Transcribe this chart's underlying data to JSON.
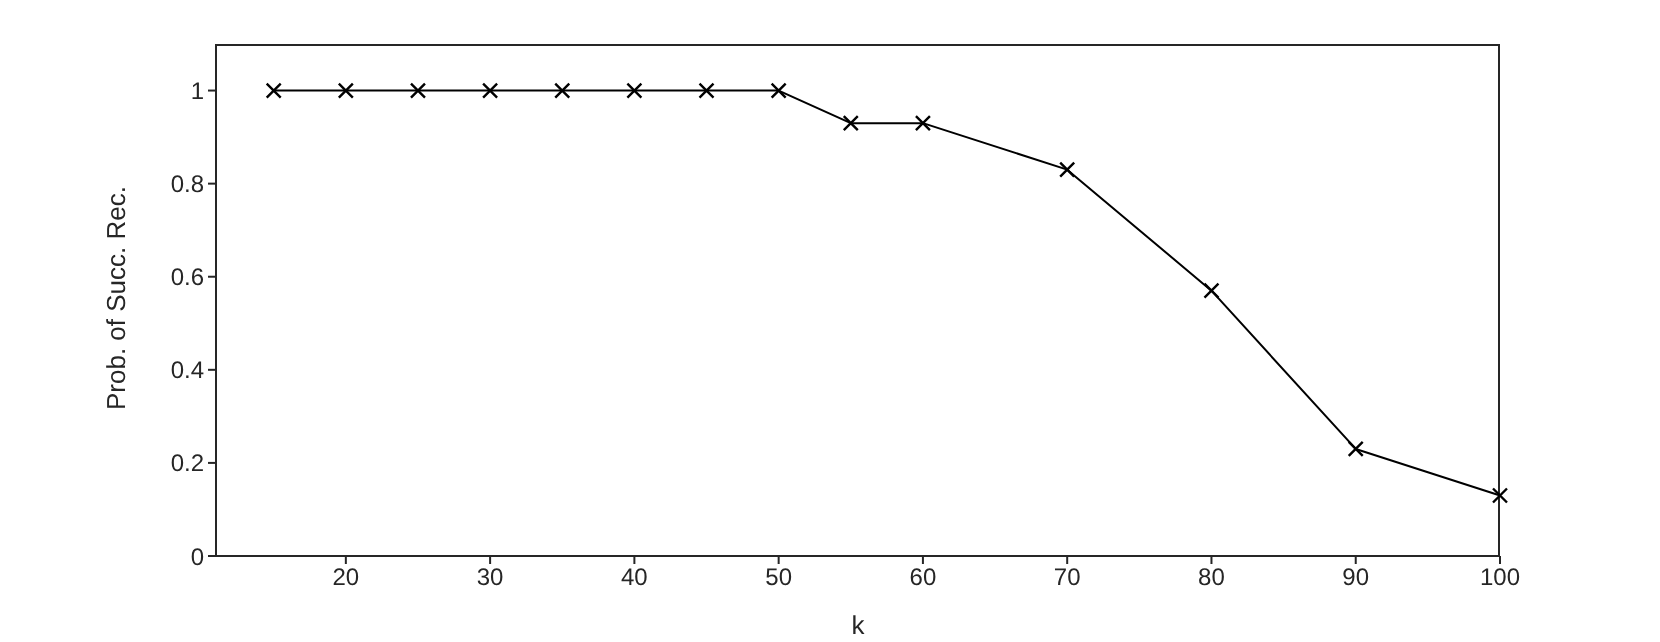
{
  "chart_data": {
    "type": "line",
    "xlabel": "k",
    "ylabel": "Prob. of Succ. Rec.",
    "x": [
      15,
      20,
      25,
      30,
      35,
      40,
      45,
      50,
      55,
      60,
      70,
      80,
      90,
      100
    ],
    "series": [
      {
        "color": "#000000",
        "values": [
          1,
          1,
          1,
          1,
          1,
          1,
          1,
          1,
          0.93,
          0.93,
          0.83,
          0.57,
          0.23,
          0.13
        ]
      }
    ],
    "xlim": [
      11,
      100
    ],
    "xticks": [
      20,
      30,
      40,
      50,
      60,
      70,
      80,
      90,
      100
    ],
    "ylim": [
      0,
      1.1
    ],
    "yticks": [
      0,
      0.2,
      0.4,
      0.6,
      0.8,
      1
    ],
    "grid": false,
    "marker": "cross",
    "line_style": "solid"
  }
}
